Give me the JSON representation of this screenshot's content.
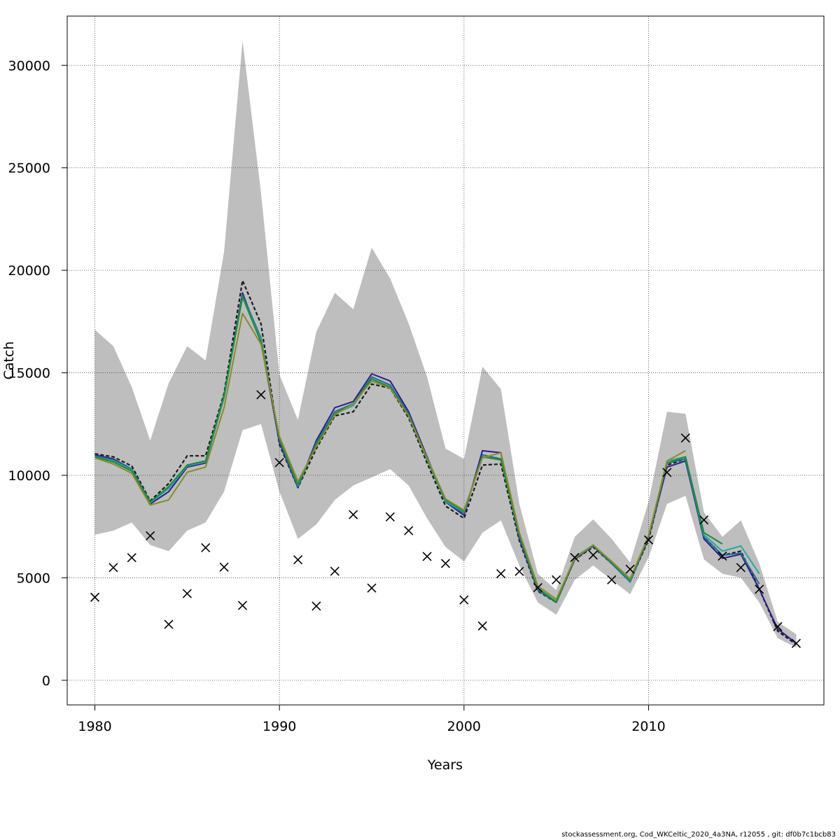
{
  "chart_data": {
    "type": "line",
    "title": "",
    "xlabel": "Years",
    "ylabel": "Catch",
    "xlim": [
      1978.5,
      2019.5
    ],
    "ylim": [
      -1200,
      32400
    ],
    "x_ticks": [
      1980,
      1990,
      2000,
      2010
    ],
    "y_ticks": [
      0,
      5000,
      10000,
      15000,
      20000,
      25000,
      30000
    ],
    "grid": true,
    "legend": "none",
    "confidence_band": {
      "color": "#bebebe",
      "x": [
        1980,
        1981,
        1982,
        1983,
        1984,
        1985,
        1986,
        1987,
        1988,
        1989,
        1990,
        1991,
        1992,
        1993,
        1994,
        1995,
        1996,
        1997,
        1998,
        1999,
        2000,
        2001,
        2002,
        2003,
        2004,
        2005,
        2006,
        2007,
        2008,
        2009,
        2010,
        2011,
        2012,
        2013,
        2014,
        2015,
        2016,
        2017,
        2018
      ],
      "upper": [
        17100,
        16300,
        14300,
        11700,
        14500,
        16300,
        15600,
        20900,
        31200,
        23800,
        14900,
        12700,
        17000,
        18900,
        18100,
        21100,
        19600,
        17400,
        14800,
        11300,
        10800,
        15300,
        14200,
        8600,
        5200,
        4400,
        7000,
        7850,
        6900,
        5750,
        8700,
        13100,
        13000,
        8200,
        7000,
        7800,
        5700,
        2850,
        2250
      ],
      "lower": [
        7100,
        7300,
        7700,
        6600,
        6300,
        7300,
        7700,
        9200,
        12200,
        12500,
        9200,
        6900,
        7600,
        8800,
        9500,
        9900,
        10300,
        9500,
        7900,
        6500,
        5800,
        7200,
        7800,
        5600,
        3800,
        3200,
        4900,
        5600,
        4900,
        4200,
        6000,
        8600,
        9000,
        5900,
        5200,
        5000,
        3800,
        2050,
        1600
      ]
    },
    "series": [
      {
        "color": "#1a1a1a",
        "dashed": true,
        "x": [
          1980,
          1981,
          1982,
          1983,
          1984,
          1985,
          1986,
          1987,
          1988,
          1989,
          1990,
          1991,
          1992,
          1993,
          1994,
          1995,
          1996,
          1997,
          1998,
          1999,
          2000,
          2001,
          2002,
          2003,
          2004,
          2005,
          2006,
          2007,
          2008,
          2009,
          2010,
          2011,
          2012,
          2013,
          2014,
          2015,
          2016,
          2017,
          2018
        ],
        "values": [
          11050,
          10900,
          10450,
          8750,
          9600,
          10950,
          10950,
          14000,
          19500,
          17400,
          11500,
          9400,
          11300,
          12900,
          13100,
          14450,
          14250,
          12800,
          10600,
          8500,
          7900,
          10500,
          10550,
          6800,
          4350,
          3800,
          5900,
          6500,
          5700,
          4850,
          6850,
          10500,
          10800,
          7000,
          6100,
          6300,
          4450,
          2400,
          1750
        ]
      },
      {
        "color": "#2b1e8c",
        "x": [
          1980,
          1981,
          1982,
          1983,
          1984,
          1985,
          1986,
          1987,
          1988,
          1989,
          1990,
          1991,
          1992,
          1993,
          1994,
          1995,
          1996,
          1997,
          1998,
          1999,
          2000,
          2001,
          2002,
          2003,
          2004,
          2005,
          2006,
          2007,
          2008,
          2009,
          2010,
          2011,
          2012,
          2013,
          2014,
          2015,
          2016,
          2017,
          2018
        ],
        "values": [
          11000,
          10800,
          10300,
          8600,
          9200,
          10400,
          10600,
          13800,
          18900,
          16500,
          11600,
          9400,
          11700,
          13300,
          13600,
          14950,
          14600,
          13100,
          10900,
          8700,
          8050,
          11200,
          11100,
          6900,
          4400,
          3800,
          5900,
          6550,
          5700,
          4800,
          6950,
          10400,
          10700,
          6900,
          5950,
          6150,
          4450,
          2500,
          1800
        ]
      },
      {
        "color": "#1f6f8b",
        "x": [
          1980,
          1981,
          1982,
          1983,
          1984,
          1985,
          1986,
          1987,
          1988,
          1989,
          1990,
          1991,
          1992,
          1993,
          1994,
          1995,
          1996,
          1997,
          1998,
          1999,
          2000,
          2001,
          2002,
          2003,
          2004,
          2005,
          2006,
          2007,
          2008,
          2009,
          2010,
          2011,
          2012,
          2013,
          2014,
          2015,
          2016
        ],
        "values": [
          10950,
          10750,
          10300,
          8700,
          9400,
          10500,
          10700,
          13900,
          18800,
          16700,
          11700,
          9450,
          11600,
          13100,
          13500,
          14800,
          14400,
          13000,
          10800,
          8700,
          8150,
          11000,
          10800,
          7000,
          4400,
          3800,
          5950,
          6550,
          5700,
          4800,
          7000,
          10600,
          10800,
          7000,
          6100,
          6200,
          4700
        ]
      },
      {
        "color": "#2aa7a0",
        "x": [
          1980,
          1981,
          1982,
          1983,
          1984,
          1985,
          1986,
          1987,
          1988,
          1989,
          1990,
          1991,
          1992,
          1993,
          1994,
          1995,
          1996,
          1997,
          1998,
          1999,
          2000,
          2001,
          2002,
          2003,
          2004,
          2005,
          2006,
          2007,
          2008,
          2009,
          2010,
          2011,
          2012,
          2013,
          2014,
          2015,
          2016
        ],
        "values": [
          10900,
          10700,
          10250,
          8650,
          9350,
          10450,
          10650,
          13800,
          18700,
          16600,
          11800,
          9500,
          11500,
          13000,
          13400,
          14700,
          14300,
          12900,
          10750,
          8750,
          8200,
          10900,
          10750,
          7100,
          4500,
          3850,
          6000,
          6600,
          5750,
          4850,
          7050,
          10700,
          10900,
          7100,
          6300,
          6550,
          5200
        ]
      },
      {
        "color": "#1f8a3a",
        "x": [
          1980,
          1981,
          1982,
          1983,
          1984,
          1985,
          1986,
          1987,
          1988,
          1989,
          1990,
          1991,
          1992,
          1993,
          1994,
          1995,
          1996,
          1997,
          1998,
          1999,
          2000,
          2001,
          2002,
          2003,
          2004,
          2005,
          2006,
          2007,
          2008,
          2009,
          2010,
          2011,
          2012,
          2013,
          2014
        ],
        "values": [
          10900,
          10650,
          10200,
          8700,
          9450,
          10500,
          10700,
          13900,
          18700,
          16500,
          11800,
          9550,
          11500,
          13000,
          13500,
          14700,
          14300,
          12900,
          10800,
          8800,
          8250,
          10900,
          10750,
          7100,
          4500,
          3800,
          5950,
          6600,
          5750,
          4900,
          7000,
          10600,
          10900,
          7200,
          6650
        ]
      },
      {
        "color": "#8a8a2a",
        "x": [
          1980,
          1981,
          1982,
          1983,
          1984,
          1985,
          1986,
          1987,
          1988,
          1989,
          1990,
          1991,
          1992,
          1993,
          1994,
          1995,
          1996,
          1997,
          1998,
          1999,
          2000,
          2001,
          2002,
          2003,
          2004,
          2005,
          2006,
          2007,
          2008,
          2009,
          2010,
          2011,
          2012
        ],
        "values": [
          10850,
          10550,
          10100,
          8550,
          8800,
          10150,
          10400,
          13300,
          17900,
          16400,
          11900,
          9700,
          11400,
          12950,
          13500,
          14600,
          14250,
          12900,
          10850,
          8850,
          8300,
          10850,
          11100,
          7200,
          4600,
          3950,
          5950,
          6600,
          5800,
          4950,
          7050,
          10700,
          11200
        ]
      }
    ],
    "observations": {
      "marker": "x",
      "color": "#000000",
      "x": [
        1980,
        1981,
        1982,
        1983,
        1984,
        1985,
        1986,
        1987,
        1988,
        1989,
        1990,
        1991,
        1992,
        1993,
        1994,
        1995,
        1996,
        1997,
        1998,
        1999,
        2000,
        2001,
        2002,
        2003,
        2004,
        2005,
        2006,
        2007,
        2008,
        2009,
        2010,
        2011,
        2012,
        2013,
        2014,
        2015,
        2016,
        2017,
        2018
      ],
      "values": [
        4050,
        5500,
        5980,
        7050,
        2730,
        4230,
        6470,
        5520,
        3650,
        13930,
        10620,
        5880,
        3620,
        5320,
        8080,
        4500,
        7970,
        7300,
        6040,
        5700,
        3920,
        2650,
        5200,
        5310,
        4520,
        4900,
        5990,
        6110,
        4900,
        5420,
        6850,
        10140,
        11820,
        7820,
        6060,
        5500,
        4440,
        2620,
        1800
      ]
    }
  },
  "footer": {
    "text": "stockassessment.org, Cod_WKCeltic_2020_4a3NA, r12055 , git: df0b7c1bcb83"
  }
}
